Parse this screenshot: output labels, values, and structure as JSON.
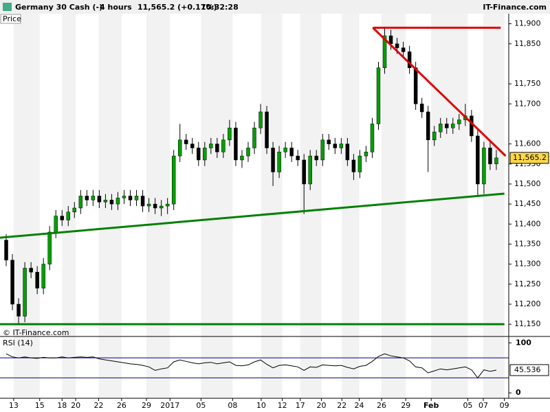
{
  "header": {
    "instrument": "Germany 30 Cash (-)",
    "period": "4 hours",
    "quote": "11,565.2 (+0.17%)",
    "time": "10:32:28",
    "brand": "IT-Finance.com"
  },
  "chart_data": [
    {
      "type": "candlestick",
      "panel_label": "Price",
      "copyright": "© IT-Finance.com",
      "up_color": "#00a000",
      "down_color": "#000000",
      "xlim": [
        -1,
        81
      ],
      "ylim": [
        11140,
        11925
      ],
      "xticks": [
        {
          "value": 1.2,
          "label": "13"
        },
        {
          "value": 5.4,
          "label": "15"
        },
        {
          "value": 9,
          "label": "18"
        },
        {
          "value": 11.2,
          "label": "20"
        },
        {
          "value": 14.9,
          "label": "22"
        },
        {
          "value": 18.6,
          "label": "26"
        },
        {
          "value": 22.6,
          "label": "29"
        },
        {
          "value": 26.4,
          "label": "2017"
        },
        {
          "value": 31.4,
          "label": "05"
        },
        {
          "value": 36.5,
          "label": "08"
        },
        {
          "value": 41.1,
          "label": "10"
        },
        {
          "value": 44.5,
          "label": "12"
        },
        {
          "value": 47.4,
          "label": "17"
        },
        {
          "value": 50.8,
          "label": "20"
        },
        {
          "value": 54.1,
          "label": "22"
        },
        {
          "value": 56.9,
          "label": "24"
        },
        {
          "value": 60.5,
          "label": "26"
        },
        {
          "value": 64.4,
          "label": "29"
        },
        {
          "value": 68.5,
          "label": "Feb"
        },
        {
          "value": 74.4,
          "label": "05"
        },
        {
          "value": 76.9,
          "label": "07"
        },
        {
          "value": 80.3,
          "label": "09"
        }
      ],
      "yticks": [
        {
          "value": 11150,
          "label": "11,150"
        },
        {
          "value": 11200,
          "label": "11,200"
        },
        {
          "value": 11250,
          "label": "11,250"
        },
        {
          "value": 11300,
          "label": "11,300"
        },
        {
          "value": 11350,
          "label": "11,350"
        },
        {
          "value": 11400,
          "label": "11,400"
        },
        {
          "value": 11450,
          "label": "11,450"
        },
        {
          "value": 11500,
          "label": "11,500"
        },
        {
          "value": 11550,
          "label": "11,550"
        },
        {
          "value": 11600,
          "label": "11,600"
        },
        {
          "value": 11700,
          "label": "11,700"
        },
        {
          "value": 11750,
          "label": "11,750"
        },
        {
          "value": 11850,
          "label": "11,850"
        },
        {
          "value": 11900,
          "label": "11,900"
        }
      ],
      "current": {
        "value": 11565.2,
        "label": "11,565.2"
      },
      "open": [
        11360,
        11310,
        11200,
        11170,
        11290,
        11280,
        11240,
        11300,
        11380,
        11420,
        11410,
        11430,
        11440,
        11470,
        11460,
        11470,
        11455,
        11460,
        11450,
        11465,
        11470,
        11460,
        11470,
        11445,
        11450,
        11440,
        11445,
        11450,
        11570,
        11610,
        11600,
        11590,
        11560,
        11590,
        11600,
        11580,
        11610,
        11640,
        11560,
        11570,
        11590,
        11640,
        11680,
        11590,
        11530,
        11580,
        11590,
        11570,
        11560,
        11500,
        11570,
        11560,
        11610,
        11600,
        11590,
        11600,
        11560,
        11530,
        11570,
        11580,
        11650,
        11790,
        11870,
        11850,
        11840,
        11830,
        11790,
        11700,
        11680,
        11610,
        11630,
        11650,
        11640,
        11650,
        11660,
        11670,
        11620,
        11500,
        11590,
        11550
      ],
      "high": [
        11375,
        11325,
        11215,
        11305,
        11305,
        11295,
        11315,
        11395,
        11435,
        11435,
        11445,
        11455,
        11485,
        11485,
        11485,
        11485,
        11475,
        11475,
        11480,
        11485,
        11485,
        11485,
        11485,
        11465,
        11465,
        11460,
        11465,
        11585,
        11650,
        11625,
        11615,
        11605,
        11605,
        11615,
        11615,
        11625,
        11660,
        11655,
        11585,
        11605,
        11655,
        11700,
        11695,
        11605,
        11595,
        11605,
        11605,
        11585,
        11575,
        11585,
        11585,
        11625,
        11625,
        11615,
        11615,
        11615,
        11575,
        11585,
        11595,
        11665,
        11805,
        11890,
        11885,
        11865,
        11855,
        11845,
        11805,
        11715,
        11695,
        11645,
        11665,
        11665,
        11665,
        11675,
        11700,
        11685,
        11635,
        11605,
        11605,
        11585
      ],
      "low": [
        11295,
        11185,
        11150,
        11155,
        11265,
        11225,
        11225,
        11285,
        11365,
        11395,
        11395,
        11415,
        11425,
        11445,
        11445,
        11440,
        11440,
        11435,
        11435,
        11450,
        11445,
        11445,
        11430,
        11430,
        11425,
        11420,
        11425,
        11435,
        11555,
        11585,
        11575,
        11545,
        11545,
        11575,
        11565,
        11565,
        11595,
        11545,
        11540,
        11555,
        11575,
        11625,
        11575,
        11495,
        11515,
        11565,
        11555,
        11545,
        11425,
        11485,
        11545,
        11545,
        11585,
        11575,
        11575,
        11545,
        11510,
        11515,
        11555,
        11565,
        11635,
        11775,
        11835,
        11825,
        11815,
        11775,
        11685,
        11665,
        11530,
        11595,
        11615,
        11625,
        11625,
        11635,
        11645,
        11605,
        11470,
        11475,
        11535,
        11535
      ],
      "close": [
        11310,
        11200,
        11170,
        11290,
        11280,
        11240,
        11300,
        11380,
        11420,
        11410,
        11430,
        11440,
        11470,
        11460,
        11470,
        11455,
        11460,
        11450,
        11465,
        11470,
        11460,
        11470,
        11445,
        11450,
        11440,
        11445,
        11450,
        11570,
        11610,
        11600,
        11590,
        11560,
        11590,
        11600,
        11580,
        11610,
        11640,
        11560,
        11570,
        11590,
        11640,
        11680,
        11590,
        11530,
        11580,
        11590,
        11570,
        11560,
        11500,
        11570,
        11560,
        11610,
        11600,
        11590,
        11600,
        11560,
        11530,
        11570,
        11580,
        11650,
        11790,
        11870,
        11850,
        11840,
        11830,
        11790,
        11700,
        11680,
        11610,
        11630,
        11650,
        11640,
        11650,
        11660,
        11670,
        11620,
        11500,
        11590,
        11550,
        11565.2
      ],
      "lines": [
        {
          "color": "#e00000",
          "x": [
            59.1,
            79.7
          ],
          "y": [
            11890,
            11890
          ]
        },
        {
          "color": "#e00000",
          "x": [
            59.1,
            80.5
          ],
          "y": [
            11890,
            11570
          ]
        },
        {
          "color": "#008000",
          "x": [
            -1,
            80.3
          ],
          "y": [
            11366,
            11476
          ]
        },
        {
          "color": "#008000",
          "x": [
            -1,
            80.3
          ],
          "y": [
            11150,
            11150
          ]
        }
      ]
    },
    {
      "type": "line",
      "panel_label": "RSI (14)",
      "color": "#000000",
      "level_color": "#000080",
      "xlim": [
        -1,
        81
      ],
      "ylim": [
        -8,
        110
      ],
      "yticks": [
        0,
        100
      ],
      "levels": [
        70,
        30
      ],
      "current": 45.536,
      "values": [
        78,
        72,
        70,
        72,
        70,
        69,
        71,
        70,
        70,
        72,
        70,
        71,
        72,
        71,
        72,
        68,
        66,
        64,
        62,
        60,
        58,
        57,
        55,
        52,
        45,
        48,
        50,
        62,
        66,
        63,
        60,
        58,
        60,
        61,
        58,
        60,
        62,
        55,
        54,
        56,
        62,
        66,
        57,
        50,
        55,
        56,
        54,
        52,
        45,
        52,
        51,
        56,
        55,
        54,
        55,
        51,
        48,
        53,
        55,
        63,
        73,
        78,
        74,
        72,
        70,
        64,
        52,
        50,
        40,
        44,
        48,
        46,
        48,
        50,
        52,
        46,
        30,
        46,
        43,
        45.536
      ]
    }
  ]
}
